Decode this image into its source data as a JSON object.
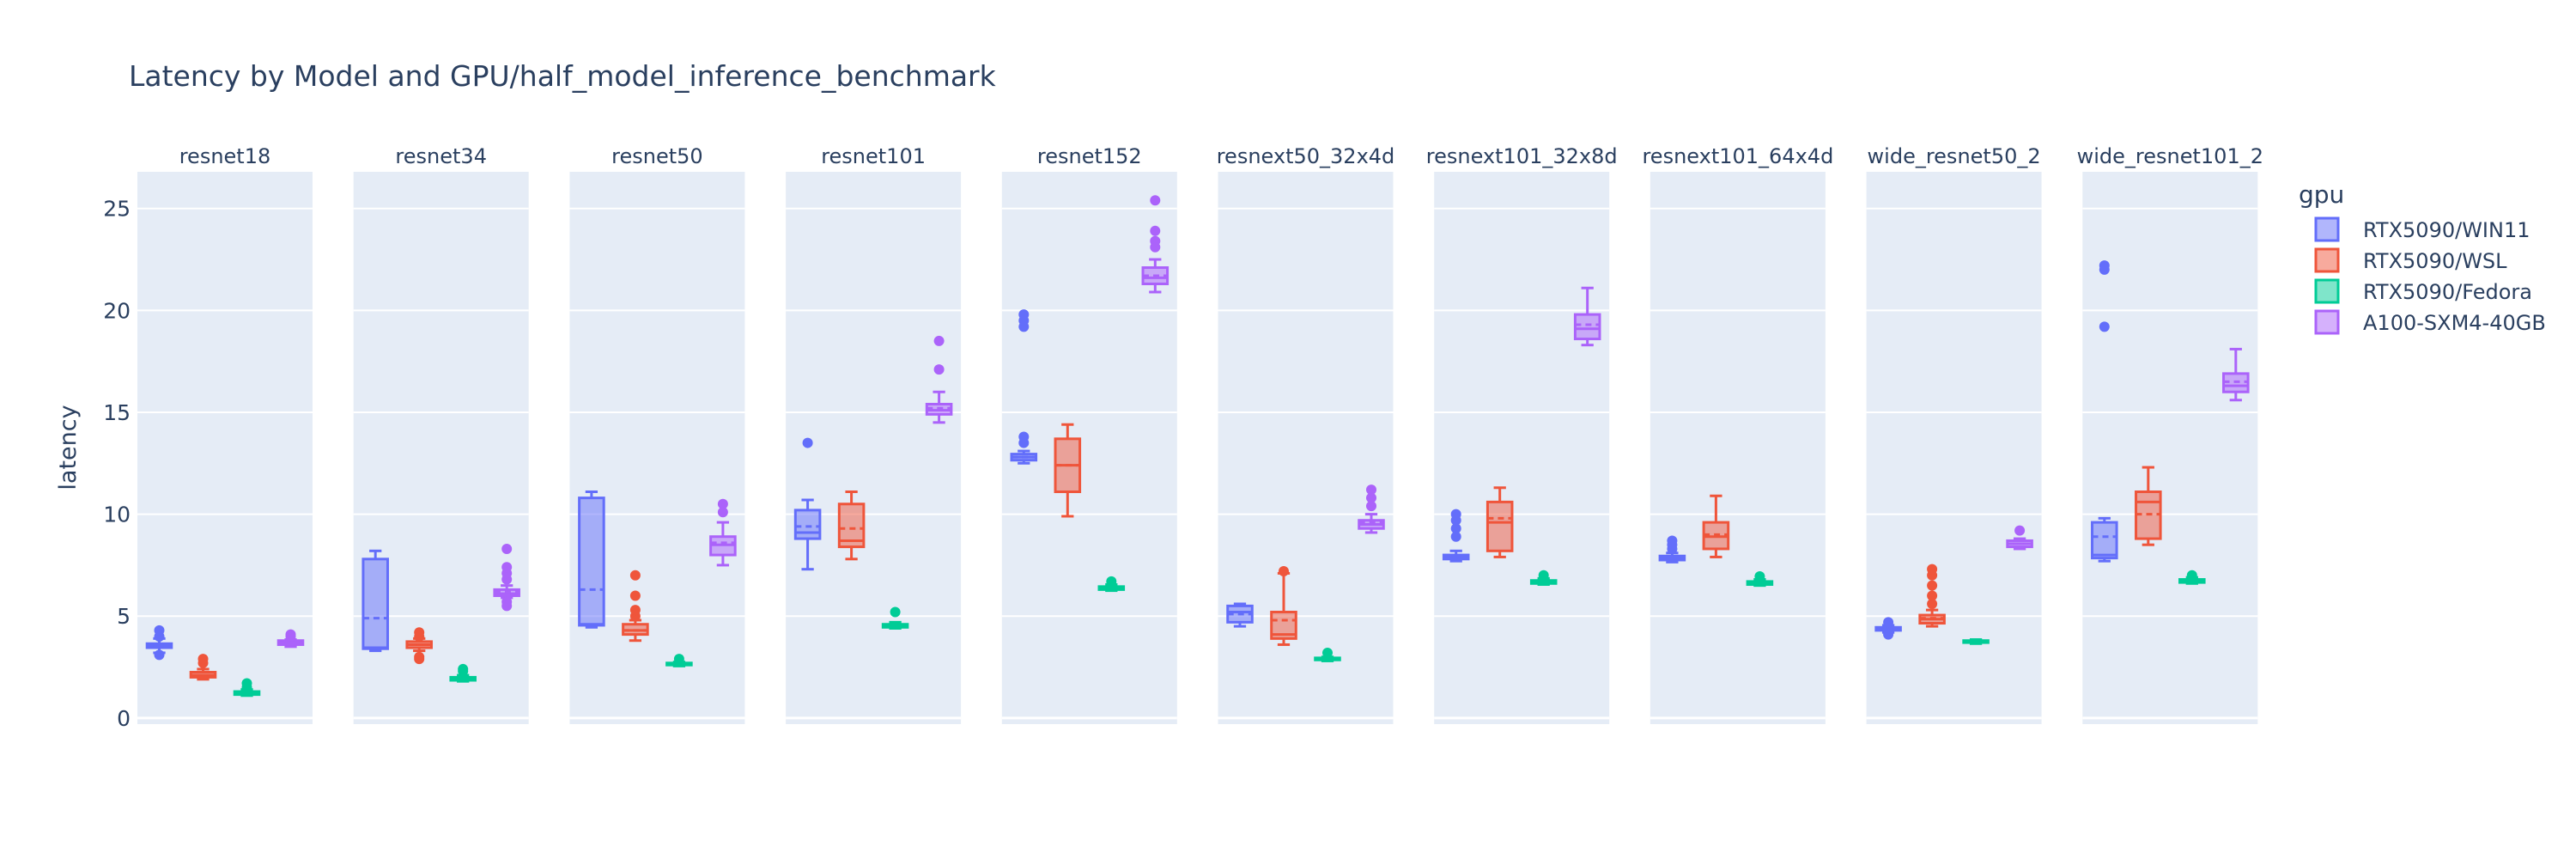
{
  "chart_data": {
    "type": "box",
    "title": "Latency by Model and GPU/half_model_inference_benchmark",
    "ylabel": "latency",
    "ylim": [
      -0.3,
      26.8
    ],
    "yticks": [
      0,
      5,
      10,
      15,
      20,
      25
    ],
    "legend": {
      "title": "gpu",
      "position": "top-right"
    },
    "series": [
      {
        "name": "RTX5090/WIN11",
        "color": "#636efa"
      },
      {
        "name": "RTX5090/WSL",
        "color": "#ef553b"
      },
      {
        "name": "RTX5090/Fedora",
        "color": "#00cc96"
      },
      {
        "name": "A100-SXM4-40GB",
        "color": "#ab63fa"
      }
    ],
    "panels": [
      {
        "model": "resnet18",
        "boxes": [
          {
            "min": 3.2,
            "q1": 3.45,
            "median": 3.55,
            "mean": 3.55,
            "q3": 3.65,
            "max": 3.9,
            "outliers": [
              3.1,
              4.0,
              4.3
            ]
          },
          {
            "min": 1.9,
            "q1": 2.0,
            "median": 2.1,
            "mean": 2.1,
            "q3": 2.25,
            "max": 2.4,
            "outliers": [
              2.7,
              2.9
            ]
          },
          {
            "min": 1.1,
            "q1": 1.15,
            "median": 1.2,
            "mean": 1.2,
            "q3": 1.3,
            "max": 1.4,
            "outliers": [
              1.5,
              1.7
            ]
          },
          {
            "min": 3.5,
            "q1": 3.6,
            "median": 3.7,
            "mean": 3.7,
            "q3": 3.8,
            "max": 3.85,
            "outliers": [
              4.0,
              4.1
            ]
          }
        ]
      },
      {
        "model": "resnet34",
        "boxes": [
          {
            "min": 3.3,
            "q1": 3.4,
            "median": 3.45,
            "mean": 4.9,
            "q3": 7.8,
            "max": 8.2,
            "outliers": []
          },
          {
            "min": 3.3,
            "q1": 3.45,
            "median": 3.6,
            "mean": 3.6,
            "q3": 3.75,
            "max": 3.9,
            "outliers": [
              2.9,
              3.0,
              4.0,
              4.2
            ]
          },
          {
            "min": 1.8,
            "q1": 1.85,
            "median": 1.9,
            "mean": 1.9,
            "q3": 2.0,
            "max": 2.1,
            "outliers": [
              2.3,
              2.4
            ]
          },
          {
            "min": 5.9,
            "q1": 6.0,
            "median": 6.1,
            "mean": 6.2,
            "q3": 6.3,
            "max": 6.5,
            "outliers": [
              5.5,
              5.7,
              6.8,
              7.1,
              7.4,
              8.3
            ]
          }
        ]
      },
      {
        "model": "resnet50",
        "boxes": [
          {
            "min": 4.45,
            "q1": 4.55,
            "median": 4.6,
            "mean": 6.3,
            "q3": 10.8,
            "max": 11.1,
            "outliers": []
          },
          {
            "min": 3.8,
            "q1": 4.1,
            "median": 4.3,
            "mean": 4.3,
            "q3": 4.6,
            "max": 4.8,
            "outliers": [
              5.0,
              5.3,
              6.0,
              7.0
            ]
          },
          {
            "min": 2.55,
            "q1": 2.6,
            "median": 2.65,
            "mean": 2.65,
            "q3": 2.7,
            "max": 2.75,
            "outliers": [
              2.9
            ]
          },
          {
            "min": 7.5,
            "q1": 8.0,
            "median": 8.5,
            "mean": 8.6,
            "q3": 8.9,
            "max": 9.6,
            "outliers": [
              10.1,
              10.5
            ]
          }
        ]
      },
      {
        "model": "resnet101",
        "boxes": [
          {
            "min": 7.3,
            "q1": 8.8,
            "median": 9.1,
            "mean": 9.4,
            "q3": 10.2,
            "max": 10.7,
            "outliers": [
              13.5
            ]
          },
          {
            "min": 7.8,
            "q1": 8.4,
            "median": 8.7,
            "mean": 9.3,
            "q3": 10.5,
            "max": 11.1,
            "outliers": []
          },
          {
            "min": 4.4,
            "q1": 4.45,
            "median": 4.5,
            "mean": 4.5,
            "q3": 4.6,
            "max": 4.7,
            "outliers": [
              5.2
            ]
          },
          {
            "min": 14.5,
            "q1": 14.9,
            "median": 15.1,
            "mean": 15.2,
            "q3": 15.4,
            "max": 16.0,
            "outliers": [
              17.1,
              18.5
            ]
          }
        ]
      },
      {
        "model": "resnet152",
        "boxes": [
          {
            "min": 12.5,
            "q1": 12.65,
            "median": 12.8,
            "mean": 12.8,
            "q3": 12.95,
            "max": 13.1,
            "outliers": [
              13.5,
              13.8,
              19.2,
              19.5,
              19.8
            ]
          },
          {
            "min": 9.9,
            "q1": 11.1,
            "median": 12.4,
            "mean": 12.4,
            "q3": 13.7,
            "max": 14.4,
            "outliers": []
          },
          {
            "min": 6.25,
            "q1": 6.3,
            "median": 6.35,
            "mean": 6.35,
            "q3": 6.45,
            "max": 6.55,
            "outliers": [
              6.7
            ]
          },
          {
            "min": 20.9,
            "q1": 21.3,
            "median": 21.6,
            "mean": 21.7,
            "q3": 22.1,
            "max": 22.5,
            "outliers": [
              23.1,
              23.4,
              23.9,
              25.4
            ]
          }
        ]
      },
      {
        "model": "resnext50_32x4d",
        "boxes": [
          {
            "min": 4.5,
            "q1": 4.7,
            "median": 5.2,
            "mean": 5.1,
            "q3": 5.5,
            "max": 5.6,
            "outliers": []
          },
          {
            "min": 3.6,
            "q1": 3.9,
            "median": 4.1,
            "mean": 4.8,
            "q3": 5.2,
            "max": 7.1,
            "outliers": [
              7.2
            ]
          },
          {
            "min": 2.8,
            "q1": 2.85,
            "median": 2.9,
            "mean": 2.9,
            "q3": 2.95,
            "max": 3.0,
            "outliers": [
              3.2
            ]
          },
          {
            "min": 9.1,
            "q1": 9.3,
            "median": 9.5,
            "mean": 9.6,
            "q3": 9.7,
            "max": 10.0,
            "outliers": [
              10.4,
              10.8,
              11.2
            ]
          }
        ]
      },
      {
        "model": "resnext101_32x8d",
        "boxes": [
          {
            "min": 7.7,
            "q1": 7.8,
            "median": 7.9,
            "mean": 7.9,
            "q3": 8.0,
            "max": 8.2,
            "outliers": [
              8.9,
              9.3,
              9.7,
              10.0
            ]
          },
          {
            "min": 7.9,
            "q1": 8.2,
            "median": 9.6,
            "mean": 9.8,
            "q3": 10.6,
            "max": 11.3,
            "outliers": []
          },
          {
            "min": 6.55,
            "q1": 6.6,
            "median": 6.7,
            "mean": 6.7,
            "q3": 6.75,
            "max": 6.85,
            "outliers": [
              7.0
            ]
          },
          {
            "min": 18.3,
            "q1": 18.6,
            "median": 19.1,
            "mean": 19.3,
            "q3": 19.8,
            "max": 21.1,
            "outliers": []
          }
        ]
      },
      {
        "model": "resnext101_64x4d",
        "boxes": [
          {
            "min": 7.65,
            "q1": 7.75,
            "median": 7.85,
            "mean": 7.85,
            "q3": 7.95,
            "max": 8.1,
            "outliers": [
              8.3,
              8.5,
              8.7
            ]
          },
          {
            "min": 7.9,
            "q1": 8.3,
            "median": 8.9,
            "mean": 9.0,
            "q3": 9.6,
            "max": 10.9,
            "outliers": []
          },
          {
            "min": 6.5,
            "q1": 6.55,
            "median": 6.65,
            "mean": 6.65,
            "q3": 6.7,
            "max": 6.8,
            "outliers": [
              6.95
            ]
          },
          {
            "min": 0,
            "q1": 0,
            "median": 0,
            "mean": 0,
            "q3": 0,
            "max": 0,
            "outliers": [],
            "empty": true
          }
        ]
      },
      {
        "model": "wide_resnet50_2",
        "boxes": [
          {
            "min": 4.2,
            "q1": 4.3,
            "median": 4.35,
            "mean": 4.35,
            "q3": 4.45,
            "max": 4.55,
            "outliers": [
              4.1,
              4.7
            ]
          },
          {
            "min": 4.5,
            "q1": 4.65,
            "median": 4.85,
            "mean": 4.9,
            "q3": 5.05,
            "max": 5.3,
            "outliers": [
              5.6,
              6.0,
              6.5,
              7.0,
              7.3
            ]
          },
          {
            "min": 3.65,
            "q1": 3.7,
            "median": 3.75,
            "mean": 3.75,
            "q3": 3.8,
            "max": 3.85,
            "outliers": []
          },
          {
            "min": 8.3,
            "q1": 8.4,
            "median": 8.55,
            "mean": 8.55,
            "q3": 8.7,
            "max": 8.8,
            "outliers": [
              9.2
            ]
          }
        ]
      },
      {
        "model": "wide_resnet101_2",
        "boxes": [
          {
            "min": 7.7,
            "q1": 7.85,
            "median": 8.0,
            "mean": 8.9,
            "q3": 9.6,
            "max": 9.8,
            "outliers": [
              19.2,
              22.0,
              22.2
            ]
          },
          {
            "min": 8.5,
            "q1": 8.8,
            "median": 10.6,
            "mean": 10.0,
            "q3": 11.1,
            "max": 12.3,
            "outliers": []
          },
          {
            "min": 6.6,
            "q1": 6.65,
            "median": 6.7,
            "mean": 6.7,
            "q3": 6.8,
            "max": 6.9,
            "outliers": [
              7.0
            ]
          },
          {
            "min": 15.6,
            "q1": 16.0,
            "median": 16.3,
            "mean": 16.5,
            "q3": 16.9,
            "max": 18.1,
            "outliers": []
          }
        ]
      }
    ]
  }
}
